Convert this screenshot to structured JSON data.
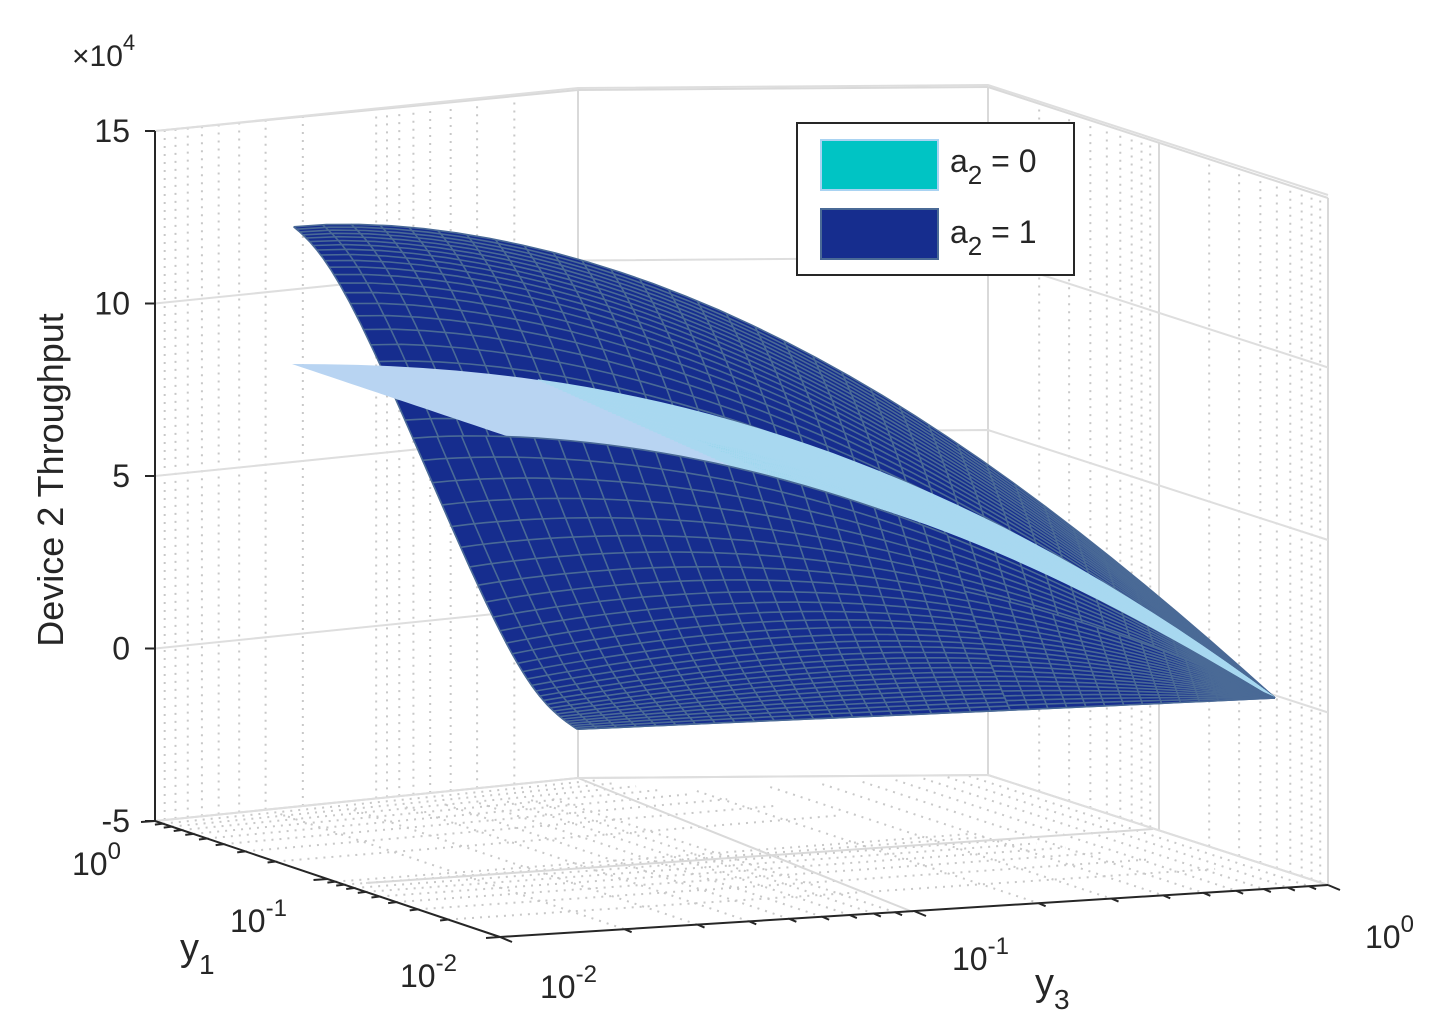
{
  "chart_data": {
    "type": "surface3d",
    "zlabel": "Device 2 Throughput",
    "zlim": [
      -5,
      15
    ],
    "z_multiplier": {
      "base": "10",
      "exponent": "4",
      "prefix": "×"
    },
    "z_ticks": [
      "15",
      "10",
      "5",
      "0",
      "-5"
    ],
    "z_tick_values": [
      15,
      10,
      5,
      0,
      -5
    ],
    "y1_axis": {
      "label": "y",
      "label_sub": "1",
      "scale": "log",
      "range": [
        0.01,
        1
      ],
      "ticks": [
        {
          "value": 1,
          "base": "10",
          "exp": "0"
        },
        {
          "value": 0.1,
          "base": "10",
          "exp": "-1"
        },
        {
          "value": 0.01,
          "base": "10",
          "exp": "-2"
        }
      ]
    },
    "y3_axis": {
      "label": "y",
      "label_sub": "3",
      "scale": "log",
      "range": [
        0.01,
        1
      ],
      "ticks": [
        {
          "value": 0.01,
          "base": "10",
          "exp": "-2"
        },
        {
          "value": 0.1,
          "base": "10",
          "exp": "-1"
        },
        {
          "value": 1,
          "base": "10",
          "exp": "0"
        }
      ]
    },
    "grid": true,
    "legend": {
      "placement": "top-right",
      "entries": [
        {
          "label": "a",
          "sub": "2",
          "suffix": " = 0",
          "color": "#00c4c4"
        },
        {
          "label": "a",
          "sub": "2",
          "suffix": " = 1",
          "color": "#162d8e"
        }
      ]
    },
    "series": [
      {
        "name": "a2 = 1",
        "color": "#162d8e",
        "edge_color": "#4a6a96",
        "corners_z": {
          "y1_hi_y3_lo": 12.5,
          "y1_lo_y3_lo": -2.4,
          "y1_lo_y3_hi": -1.4,
          "y1_hi_y3_hi": -1.4
        }
      },
      {
        "name": "a2 = 0",
        "color": "#00c4c4",
        "edge_color": "#b8d4f2",
        "corners_z": {
          "y1_hi_y3_lo": 8.5,
          "y1_lo_y3_lo": 5.5,
          "y1_lo_y3_hi": -1.4,
          "y1_hi_y3_hi": 5.0
        }
      }
    ]
  }
}
